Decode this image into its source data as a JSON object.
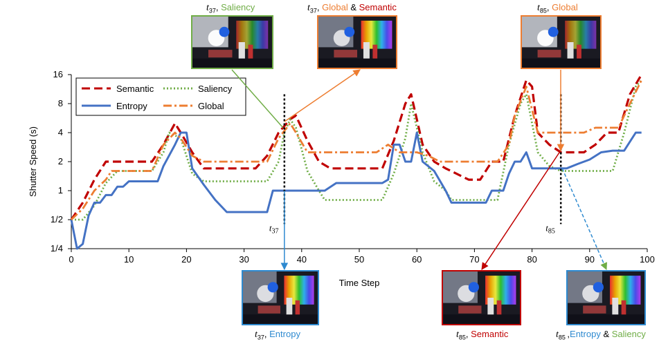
{
  "chart_data": {
    "type": "line",
    "xlabel": "Time Step",
    "ylabel": "Shutter Speed (s)",
    "xlim": [
      0,
      100
    ],
    "xticks": [
      0,
      10,
      20,
      30,
      40,
      50,
      60,
      70,
      80,
      90,
      100
    ],
    "yscale": "log2",
    "ylim": [
      0.25,
      16
    ],
    "yticks": [
      0.25,
      0.5,
      1,
      2,
      4,
      8,
      16
    ],
    "ytick_labels": [
      "1/4",
      "1/2",
      "1",
      "2",
      "4",
      "8",
      "16"
    ],
    "legend_position": "top-left",
    "grid": false,
    "series": [
      {
        "name": "Semantic",
        "color": "#c00000",
        "dash": "dashed",
        "points": [
          [
            0,
            0.5
          ],
          [
            2,
            0.75
          ],
          [
            4,
            1.3
          ],
          [
            6,
            2
          ],
          [
            14,
            2
          ],
          [
            16,
            3
          ],
          [
            18,
            5
          ],
          [
            19,
            4
          ],
          [
            21,
            2.5
          ],
          [
            23,
            1.7
          ],
          [
            32,
            1.7
          ],
          [
            34,
            2.3
          ],
          [
            36,
            4
          ],
          [
            38,
            5.5
          ],
          [
            39,
            6
          ],
          [
            41,
            3.3
          ],
          [
            43,
            2
          ],
          [
            45,
            1.7
          ],
          [
            54,
            1.7
          ],
          [
            56,
            3.3
          ],
          [
            58,
            8
          ],
          [
            59,
            10
          ],
          [
            61,
            3
          ],
          [
            63,
            2
          ],
          [
            65,
            1.7
          ],
          [
            69,
            1.3
          ],
          [
            71,
            1.3
          ],
          [
            73,
            2
          ],
          [
            75,
            2
          ],
          [
            77,
            6
          ],
          [
            79,
            14
          ],
          [
            80,
            12
          ],
          [
            81,
            4
          ],
          [
            83,
            3
          ],
          [
            85,
            2.5
          ],
          [
            89,
            2.5
          ],
          [
            91,
            3
          ],
          [
            93,
            4
          ],
          [
            95,
            4
          ],
          [
            97,
            10
          ],
          [
            99,
            16
          ]
        ]
      },
      {
        "name": "Saliency",
        "color": "#70ad47",
        "dash": "dotted",
        "points": [
          [
            0,
            0.5
          ],
          [
            2,
            0.5
          ],
          [
            4,
            0.7
          ],
          [
            6,
            1.2
          ],
          [
            8,
            1.6
          ],
          [
            14,
            1.6
          ],
          [
            16,
            2.5
          ],
          [
            17,
            4
          ],
          [
            19,
            3.5
          ],
          [
            21,
            1.5
          ],
          [
            23,
            1.25
          ],
          [
            34,
            1.25
          ],
          [
            36,
            2
          ],
          [
            37,
            4
          ],
          [
            38,
            5.5
          ],
          [
            39,
            4.5
          ],
          [
            41,
            1.6
          ],
          [
            43,
            1
          ],
          [
            44,
            0.8
          ],
          [
            54,
            0.8
          ],
          [
            56,
            1.5
          ],
          [
            58,
            3.5
          ],
          [
            59,
            8
          ],
          [
            61,
            2.5
          ],
          [
            63,
            1.25
          ],
          [
            65,
            1
          ],
          [
            66,
            0.8
          ],
          [
            74,
            0.8
          ],
          [
            76,
            3
          ],
          [
            78,
            8
          ],
          [
            79,
            10
          ],
          [
            81,
            2.5
          ],
          [
            83,
            1.8
          ],
          [
            85,
            1.6
          ],
          [
            94,
            1.6
          ],
          [
            96,
            4
          ],
          [
            98,
            12
          ],
          [
            99,
            14
          ]
        ]
      },
      {
        "name": "Entropy",
        "color": "#4472c4",
        "dash": "solid",
        "points": [
          [
            0,
            0.5
          ],
          [
            1,
            0.25
          ],
          [
            2,
            0.28
          ],
          [
            3,
            0.55
          ],
          [
            4,
            0.75
          ],
          [
            5,
            0.75
          ],
          [
            6,
            0.9
          ],
          [
            7,
            0.9
          ],
          [
            8,
            1.1
          ],
          [
            9,
            1.1
          ],
          [
            10,
            1.25
          ],
          [
            14,
            1.25
          ],
          [
            15,
            1.25
          ],
          [
            16,
            1.8
          ],
          [
            18,
            3
          ],
          [
            19,
            4
          ],
          [
            20,
            4
          ],
          [
            21,
            1.7
          ],
          [
            23,
            1.15
          ],
          [
            25,
            0.8
          ],
          [
            27,
            0.6
          ],
          [
            34,
            0.6
          ],
          [
            35,
            1
          ],
          [
            44,
            1
          ],
          [
            46,
            1.2
          ],
          [
            54,
            1.2
          ],
          [
            55,
            1.3
          ],
          [
            56,
            3
          ],
          [
            57,
            3
          ],
          [
            58,
            2
          ],
          [
            59,
            2
          ],
          [
            60,
            4
          ],
          [
            61,
            2
          ],
          [
            63,
            1.6
          ],
          [
            65,
            1
          ],
          [
            66,
            0.75
          ],
          [
            72,
            0.75
          ],
          [
            73,
            1
          ],
          [
            75,
            1
          ],
          [
            76,
            1.5
          ],
          [
            77,
            2
          ],
          [
            78,
            2
          ],
          [
            79,
            2.5
          ],
          [
            80,
            1.7
          ],
          [
            85,
            1.7
          ],
          [
            86,
            1.7
          ],
          [
            88,
            1.9
          ],
          [
            90,
            2.1
          ],
          [
            92,
            2.5
          ],
          [
            94,
            2.6
          ],
          [
            96,
            2.6
          ],
          [
            98,
            4
          ],
          [
            99,
            4
          ]
        ]
      },
      {
        "name": "Global",
        "color": "#ed7d31",
        "dash": "dashdot",
        "points": [
          [
            0,
            0.5
          ],
          [
            2,
            0.65
          ],
          [
            4,
            1
          ],
          [
            6,
            1.3
          ],
          [
            7,
            1.6
          ],
          [
            14,
            1.6
          ],
          [
            16,
            3
          ],
          [
            18,
            4
          ],
          [
            19,
            3.5
          ],
          [
            21,
            2.3
          ],
          [
            23,
            2
          ],
          [
            34,
            2
          ],
          [
            36,
            3.5
          ],
          [
            38,
            5
          ],
          [
            39,
            4
          ],
          [
            41,
            2.5
          ],
          [
            47,
            2.5
          ],
          [
            51,
            2.5
          ],
          [
            53,
            2.5
          ],
          [
            55,
            3
          ],
          [
            57,
            2.5
          ],
          [
            58,
            2.5
          ],
          [
            60,
            2.5
          ],
          [
            62,
            2.3
          ],
          [
            64,
            2
          ],
          [
            72,
            2
          ],
          [
            74,
            2
          ],
          [
            76,
            3
          ],
          [
            77,
            6
          ],
          [
            79,
            12
          ],
          [
            81,
            4
          ],
          [
            89,
            4
          ],
          [
            91,
            4.5
          ],
          [
            95,
            4.5
          ],
          [
            97,
            8
          ],
          [
            99,
            14
          ]
        ]
      }
    ],
    "markers": [
      {
        "label": "t",
        "sub": "37",
        "x": 37
      },
      {
        "label": "t",
        "sub": "85",
        "x": 85
      }
    ]
  },
  "captions": {
    "top_left": {
      "t": "t",
      "sub": "37",
      "parts": [
        ", ",
        "Saliency"
      ]
    },
    "top_mid": {
      "t": "t",
      "sub": "37",
      "parts": [
        ", ",
        "Global",
        " & ",
        "Semantic"
      ]
    },
    "top_right": {
      "t": "t",
      "sub": "85",
      "parts": [
        ", ",
        "Global"
      ]
    },
    "bot_left": {
      "t": "t",
      "sub": "37",
      "parts": [
        ", ",
        "Entropy"
      ]
    },
    "bot_mid": {
      "t": "t",
      "sub": "85",
      "parts": [
        ", ",
        "Semantic"
      ]
    },
    "bot_right": {
      "t": "t",
      "sub": "85 ",
      "parts": [
        ",",
        "Entropy",
        " & ",
        "Saliency"
      ]
    }
  },
  "colors": {
    "semantic": "#c00000",
    "saliency": "#70ad47",
    "entropy": "#4472c4",
    "global": "#ed7d31",
    "axis": "#000000"
  }
}
